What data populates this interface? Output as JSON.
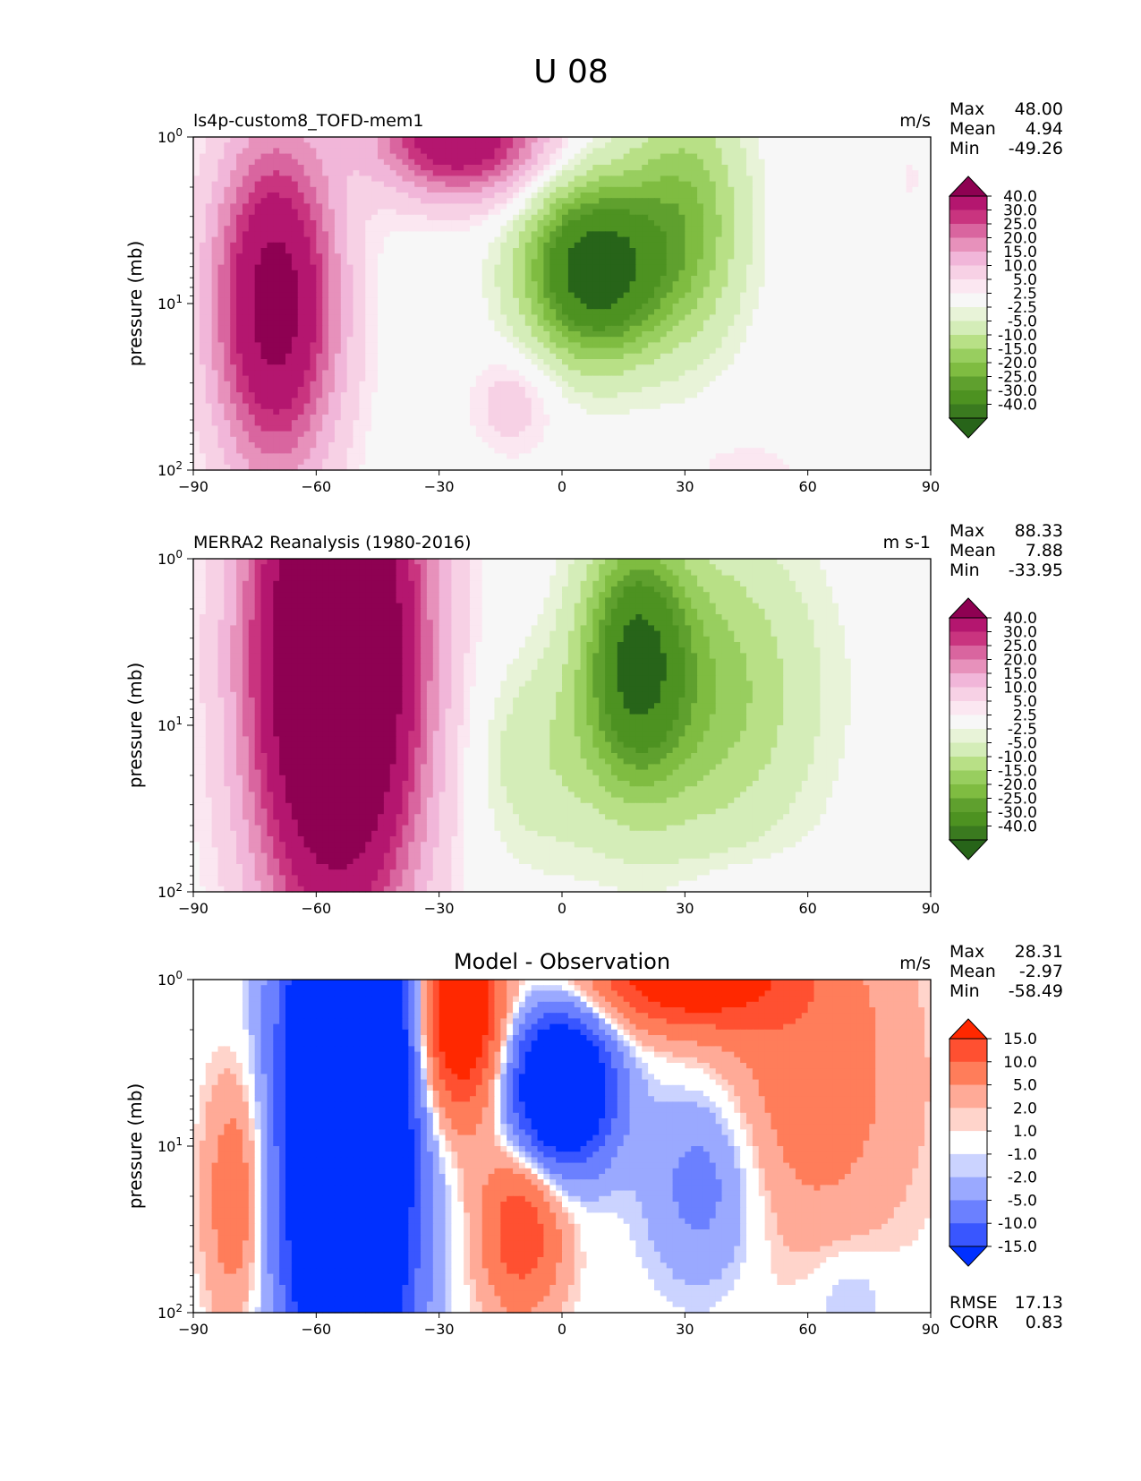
{
  "figure": {
    "suptitle": "U 08"
  },
  "chart_data": [
    {
      "type": "heatmap",
      "title": "ls4p-custom8_TOFD-mem1",
      "units": "m/s",
      "ylabel": "pressure (mb)",
      "xlim": [
        -90,
        90
      ],
      "y_scale": "log-inverted",
      "xticks": [
        "−90",
        "−60",
        "−30",
        "0",
        "30",
        "60",
        "90"
      ],
      "yticks": [
        {
          "base": "10",
          "exp": "0"
        },
        {
          "base": "10",
          "exp": "1"
        },
        {
          "base": "10",
          "exp": "2"
        }
      ],
      "stats": [
        {
          "label": "Max",
          "value": "48.00"
        },
        {
          "label": "Mean",
          "value": "4.94"
        },
        {
          "label": "Min",
          "value": "-49.26"
        }
      ],
      "colorbar": {
        "extend": "both",
        "labels": [
          "40.0",
          "30.0",
          "25.0",
          "20.0",
          "15.0",
          "10.0",
          "5.0",
          "2.5",
          "-2.5",
          "-5.0",
          "-10.0",
          "-15.0",
          "-20.0",
          "-25.0",
          "-30.0",
          "-40.0"
        ]
      },
      "field_summary": [
        {
          "lat": -70,
          "p": 10,
          "value": 45
        },
        {
          "lat": -20,
          "p": 1,
          "value": 35
        },
        {
          "lat": 10,
          "p": 5,
          "value": -45
        },
        {
          "lat": -15,
          "p": 30,
          "value": 0
        },
        {
          "lat": 60,
          "p": 50,
          "value": 0
        }
      ]
    },
    {
      "type": "heatmap",
      "title": "MERRA2 Reanalysis (1980-2016)",
      "units": "m s-1",
      "ylabel": "pressure (mb)",
      "xlim": [
        -90,
        90
      ],
      "y_scale": "log-inverted",
      "xticks": [
        "−90",
        "−60",
        "−30",
        "0",
        "30",
        "60",
        "90"
      ],
      "yticks": [
        {
          "base": "10",
          "exp": "0"
        },
        {
          "base": "10",
          "exp": "1"
        },
        {
          "base": "10",
          "exp": "2"
        }
      ],
      "stats": [
        {
          "label": "Max",
          "value": "88.33"
        },
        {
          "label": "Mean",
          "value": "7.88"
        },
        {
          "label": "Min",
          "value": "-33.95"
        }
      ],
      "colorbar": {
        "extend": "both",
        "labels": [
          "40.0",
          "30.0",
          "25.0",
          "20.0",
          "15.0",
          "10.0",
          "5.0",
          "2.5",
          "-2.5",
          "-5.0",
          "-10.0",
          "-15.0",
          "-20.0",
          "-25.0",
          "-30.0",
          "-40.0"
        ]
      },
      "field_summary": [
        {
          "lat": -55,
          "p": 5,
          "value": 80
        },
        {
          "lat": 20,
          "p": 3,
          "value": -32
        },
        {
          "lat": -10,
          "p": 20,
          "value": -8
        },
        {
          "lat": 60,
          "p": 50,
          "value": 0
        }
      ]
    },
    {
      "type": "heatmap",
      "title": "Model - Observation",
      "units": "m/s",
      "ylabel": "pressure (mb)",
      "xlim": [
        -90,
        90
      ],
      "y_scale": "log-inverted",
      "xticks": [
        "−90",
        "−60",
        "−30",
        "0",
        "30",
        "60",
        "90"
      ],
      "yticks": [
        {
          "base": "10",
          "exp": "0"
        },
        {
          "base": "10",
          "exp": "1"
        },
        {
          "base": "10",
          "exp": "2"
        }
      ],
      "stats": [
        {
          "label": "Max",
          "value": "28.31"
        },
        {
          "label": "Mean",
          "value": "-2.97"
        },
        {
          "label": "Min",
          "value": "-58.49"
        }
      ],
      "extra_stats": [
        {
          "label": "RMSE",
          "value": "17.13"
        },
        {
          "label": "CORR",
          "value": "0.83"
        }
      ],
      "colorbar": {
        "extend": "both",
        "labels": [
          "15.0",
          "10.0",
          "5.0",
          "2.0",
          "1.0",
          "-1.0",
          "-2.0",
          "-5.0",
          "-10.0",
          "-15.0"
        ]
      },
      "field_summary": [
        {
          "lat": -55,
          "p": 10,
          "value": -50
        },
        {
          "lat": -25,
          "p": 2,
          "value": 20
        },
        {
          "lat": 0,
          "p": 5,
          "value": -20
        },
        {
          "lat": 60,
          "p": 3,
          "value": 5
        }
      ]
    }
  ]
}
